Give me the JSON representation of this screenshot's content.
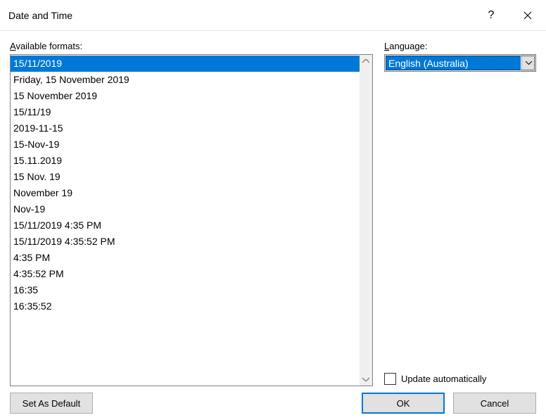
{
  "title": "Date and Time",
  "labels": {
    "available_formats_pre": "A",
    "available_formats_rest": "vailable formats:",
    "language_pre": "L",
    "language_rest": "anguage:",
    "update_auto_pre": "U",
    "update_auto_rest": "pdate automatically"
  },
  "formats": {
    "selected_index": 0,
    "items": [
      "15/11/2019",
      "Friday, 15 November 2019",
      "15 November 2019",
      "15/11/19",
      "2019-11-15",
      "15-Nov-19",
      "15.11.2019",
      "15 Nov. 19",
      "November 19",
      "Nov-19",
      "15/11/2019 4:35 PM",
      "15/11/2019 4:35:52 PM",
      "4:35 PM",
      "4:35:52 PM",
      "16:35",
      "16:35:52"
    ]
  },
  "language": {
    "selected": "English (Australia)"
  },
  "update_automatically": false,
  "buttons": {
    "set_as_default": "Set As Default",
    "ok": "OK",
    "cancel": "Cancel"
  },
  "colors": {
    "selection_bg": "#0078d7",
    "selection_fg": "#ffffff",
    "button_bg": "#e1e1e1",
    "border": "#adadad"
  }
}
